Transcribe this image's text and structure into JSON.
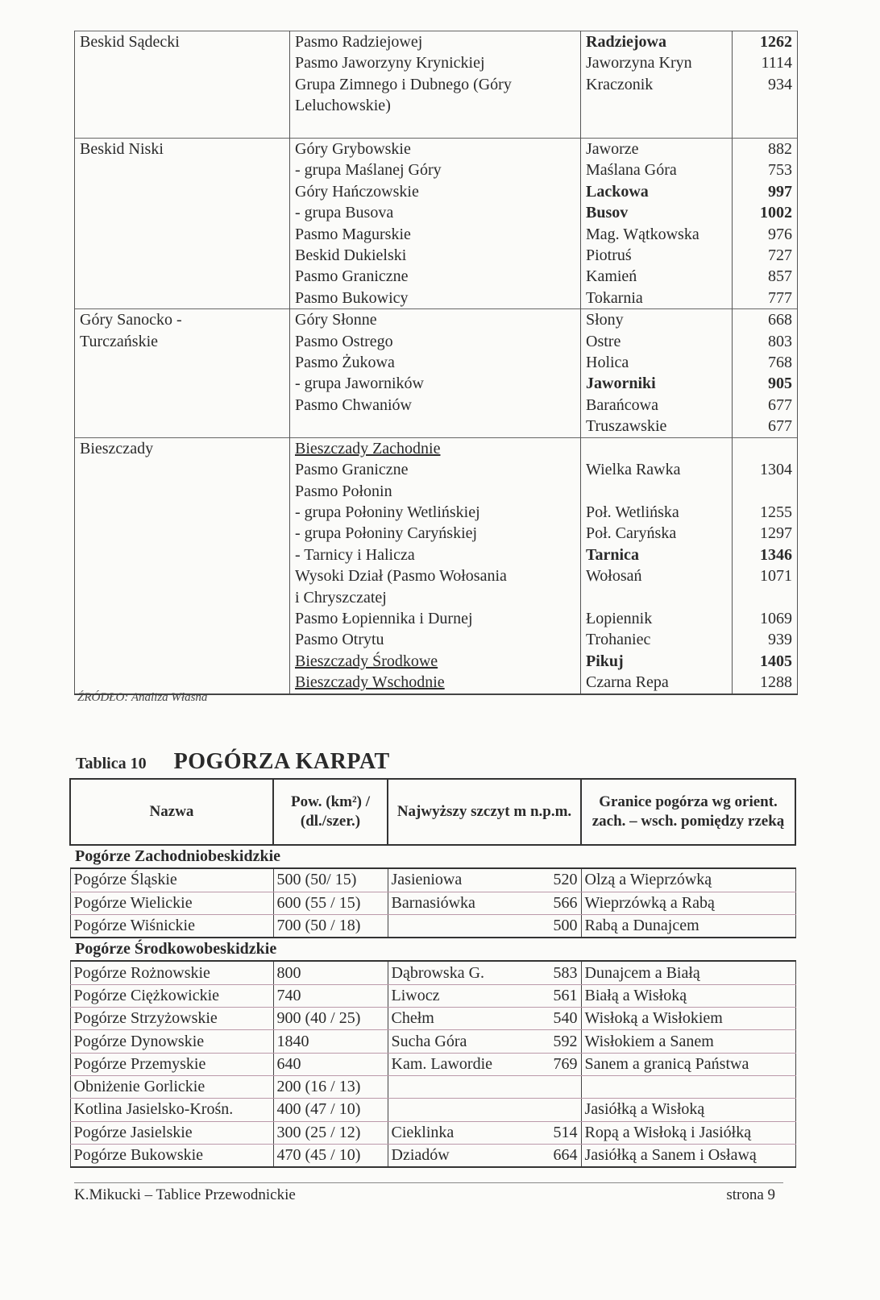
{
  "table_mountains": {
    "sections": [
      {
        "region": [
          "Beskid Sądecki"
        ],
        "rows": [
          {
            "group": "Pasmo Radziejowej",
            "peak": "Radziejowa",
            "height": "1262",
            "bold": true
          },
          {
            "group": "Pasmo Jaworzyny Krynickiej",
            "peak": "Jaworzyna Kryn",
            "height": "1114"
          },
          {
            "group": "Grupa Zimnego i Dubnego (Góry",
            "peak": "Kraczonik",
            "height": "934"
          },
          {
            "group": "Leluchowskie)",
            "peak": "",
            "height": ""
          },
          {
            "group": "",
            "peak": "",
            "height": ""
          }
        ]
      },
      {
        "region": [
          "Beskid Niski"
        ],
        "rows": [
          {
            "group": "Góry Grybowskie",
            "peak": "Jaworze",
            "height": "882"
          },
          {
            "group": "- grupa Maślanej Góry",
            "peak": "Maślana Góra",
            "height": "753"
          },
          {
            "group": "Góry Hańczowskie",
            "peak": "Lackowa",
            "height": "997",
            "bold": true
          },
          {
            "group": "- grupa Busova",
            "peak": "Busov",
            "height": "1002",
            "bold": true
          },
          {
            "group": "Pasmo Magurskie",
            "peak": "Mag. Wątkowska",
            "height": "976"
          },
          {
            "group": "Beskid Dukielski",
            "peak": "Piotruś",
            "height": "727"
          },
          {
            "group": "Pasmo Graniczne",
            "peak": "Kamień",
            "height": "857"
          },
          {
            "group": "Pasmo Bukowicy",
            "peak": "Tokarnia",
            "height": "777"
          }
        ]
      },
      {
        "region": [
          "Góry Sanocko -",
          "Turczańskie"
        ],
        "rows": [
          {
            "group": "Góry Słonne",
            "peak": "Słony",
            "height": "668"
          },
          {
            "group": "Pasmo Ostrego",
            "peak": "Ostre",
            "height": "803"
          },
          {
            "group": "Pasmo Żukowa",
            "peak": "Holica",
            "height": "768"
          },
          {
            "group": "- grupa Jaworników",
            "peak": "Jaworniki",
            "height": "905",
            "bold": true
          },
          {
            "group": "Pasmo Chwaniów",
            "peak": "Barańcowa",
            "height": "677"
          },
          {
            "group": "",
            "peak": "Truszawskie",
            "height": "677"
          }
        ]
      },
      {
        "region": [
          "Bieszczady"
        ],
        "rows": [
          {
            "group": "Bieszczady Zachodnie",
            "underline": true,
            "peak": "",
            "height": ""
          },
          {
            "group": "Pasmo Graniczne",
            "peak": "Wielka Rawka",
            "height": "1304"
          },
          {
            "group": "Pasmo Połonin",
            "peak": "",
            "height": ""
          },
          {
            "group": "- grupa Połoniny Wetlińskiej",
            "peak": "Poł. Wetlińska",
            "height": "1255"
          },
          {
            "group": "- grupa Połoniny Caryńskiej",
            "peak": "Poł. Caryńska",
            "height": "1297"
          },
          {
            "group": "- Tarnicy i Halicza",
            "peak": "Tarnica",
            "height": "1346",
            "bold": true
          },
          {
            "group": "Wysoki Dział (Pasmo Wołosania",
            "peak": "Wołosań",
            "height": "1071"
          },
          {
            "group": "i Chryszczatej",
            "peak": "",
            "height": ""
          },
          {
            "group": "Pasmo Łopiennika i Durnej",
            "peak": "Łopiennik",
            "height": "1069"
          },
          {
            "group": "Pasmo Otrytu",
            "peak": "Trohaniec",
            "height": "939"
          },
          {
            "group": "Bieszczady Środkowe",
            "underline": true,
            "peak": "Pikuj",
            "height": "1405",
            "bold": true
          },
          {
            "group": "Bieszczady Wschodnie",
            "underline": true,
            "peak": "Czarna Repa",
            "height": "1288"
          }
        ]
      }
    ],
    "source": "ŹRÓDŁO: Analiza Własna"
  },
  "table10": {
    "label": "Tablica 10",
    "title": "POGÓRZA KARPAT",
    "headers": [
      "Nazwa",
      "Pow. (km²) / (dl./szer.)",
      "Najwyższy szczyt m n.p.m.",
      "Granice pogórza wg orient. zach. – wsch. pomiędzy rzeką"
    ],
    "sections": [
      {
        "name": "Pogórze Zachodniobeskidzkie",
        "rows": [
          [
            "Pogórze Śląskie",
            "500 (50/ 15)",
            "Jasieniowa",
            "520",
            "Olzą  a  Wieprzówką"
          ],
          [
            "Pogórze Wielickie",
            "600 (55 / 15)",
            "Barnasiówka",
            "566",
            "Wieprzówką a Rabą"
          ],
          [
            "Pogórze Wiśnickie",
            "700 (50 / 18)",
            "",
            "500",
            "Rabą a Dunajcem"
          ]
        ]
      },
      {
        "name": "Pogórze Środkowobeskidzkie",
        "rows": [
          [
            "Pogórze Rożnowskie",
            "800",
            "Dąbrowska G.",
            "583",
            "Dunajcem a Białą"
          ],
          [
            "Pogórze Ciężkowickie",
            "740",
            "Liwocz",
            "561",
            "Białą  a Wisłoką"
          ],
          [
            "Pogórze Strzyżowskie",
            "900 (40 / 25)",
            "Chełm",
            "540",
            "Wisłoką  a Wisłokiem"
          ],
          [
            "Pogórze Dynowskie",
            "1840",
            "Sucha Góra",
            "592",
            "Wisłokiem  a Sanem"
          ],
          [
            "Pogórze Przemyskie",
            "640",
            "Kam. Lawordie",
            "769",
            "Sanem  a granicą Państwa"
          ],
          [
            "Obniżenie Gorlickie",
            "200 (16 / 13)",
            "",
            "",
            ""
          ],
          [
            "Kotlina Jasielsko-Krośn.",
            "400 (47 / 10)",
            "",
            "",
            "Jasiółką  a Wisłoką"
          ],
          [
            "Pogórze Jasielskie",
            "300 (25 / 12)",
            "Cieklinka",
            "514",
            "Ropą  a Wisłoką i Jasiółką"
          ],
          [
            "Pogórze Bukowskie",
            "470 (45 / 10)",
            "Dziadów",
            "664",
            "Jasiółką  a Sanem i Osławą"
          ]
        ]
      }
    ]
  },
  "footer": {
    "author": "K.Mikucki – Tablice Przewodnickie",
    "page": "strona 9"
  }
}
